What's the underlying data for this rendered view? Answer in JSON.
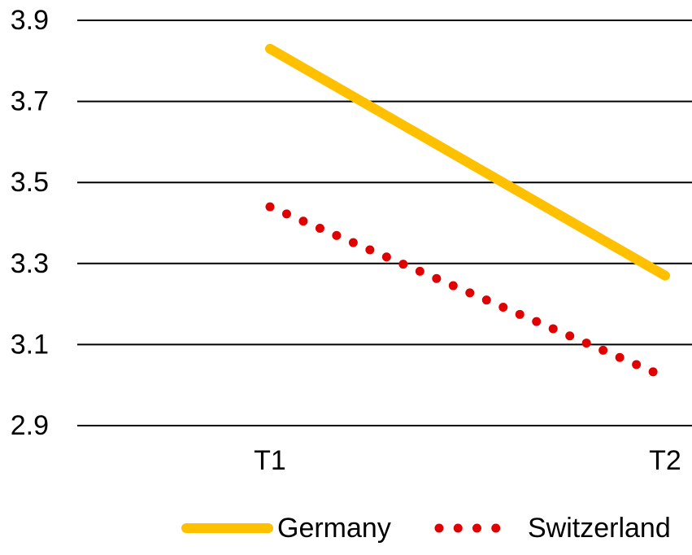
{
  "chart_data": {
    "type": "line",
    "title": "",
    "xlabel": "",
    "ylabel": "",
    "categories": [
      "T1",
      "T2"
    ],
    "ylim": [
      2.9,
      3.9
    ],
    "yticks": [
      "2.9",
      "3.1",
      "3.3",
      "3.5",
      "3.7",
      "3.9"
    ],
    "grid": true,
    "legend_position": "bottom",
    "series": [
      {
        "name": "Germany",
        "values": [
          3.83,
          3.27
        ],
        "color": "#FFC000",
        "style": "solid"
      },
      {
        "name": "Switzerland",
        "values": [
          3.44,
          3.02
        ],
        "color": "#E00000",
        "style": "dotted"
      }
    ]
  }
}
